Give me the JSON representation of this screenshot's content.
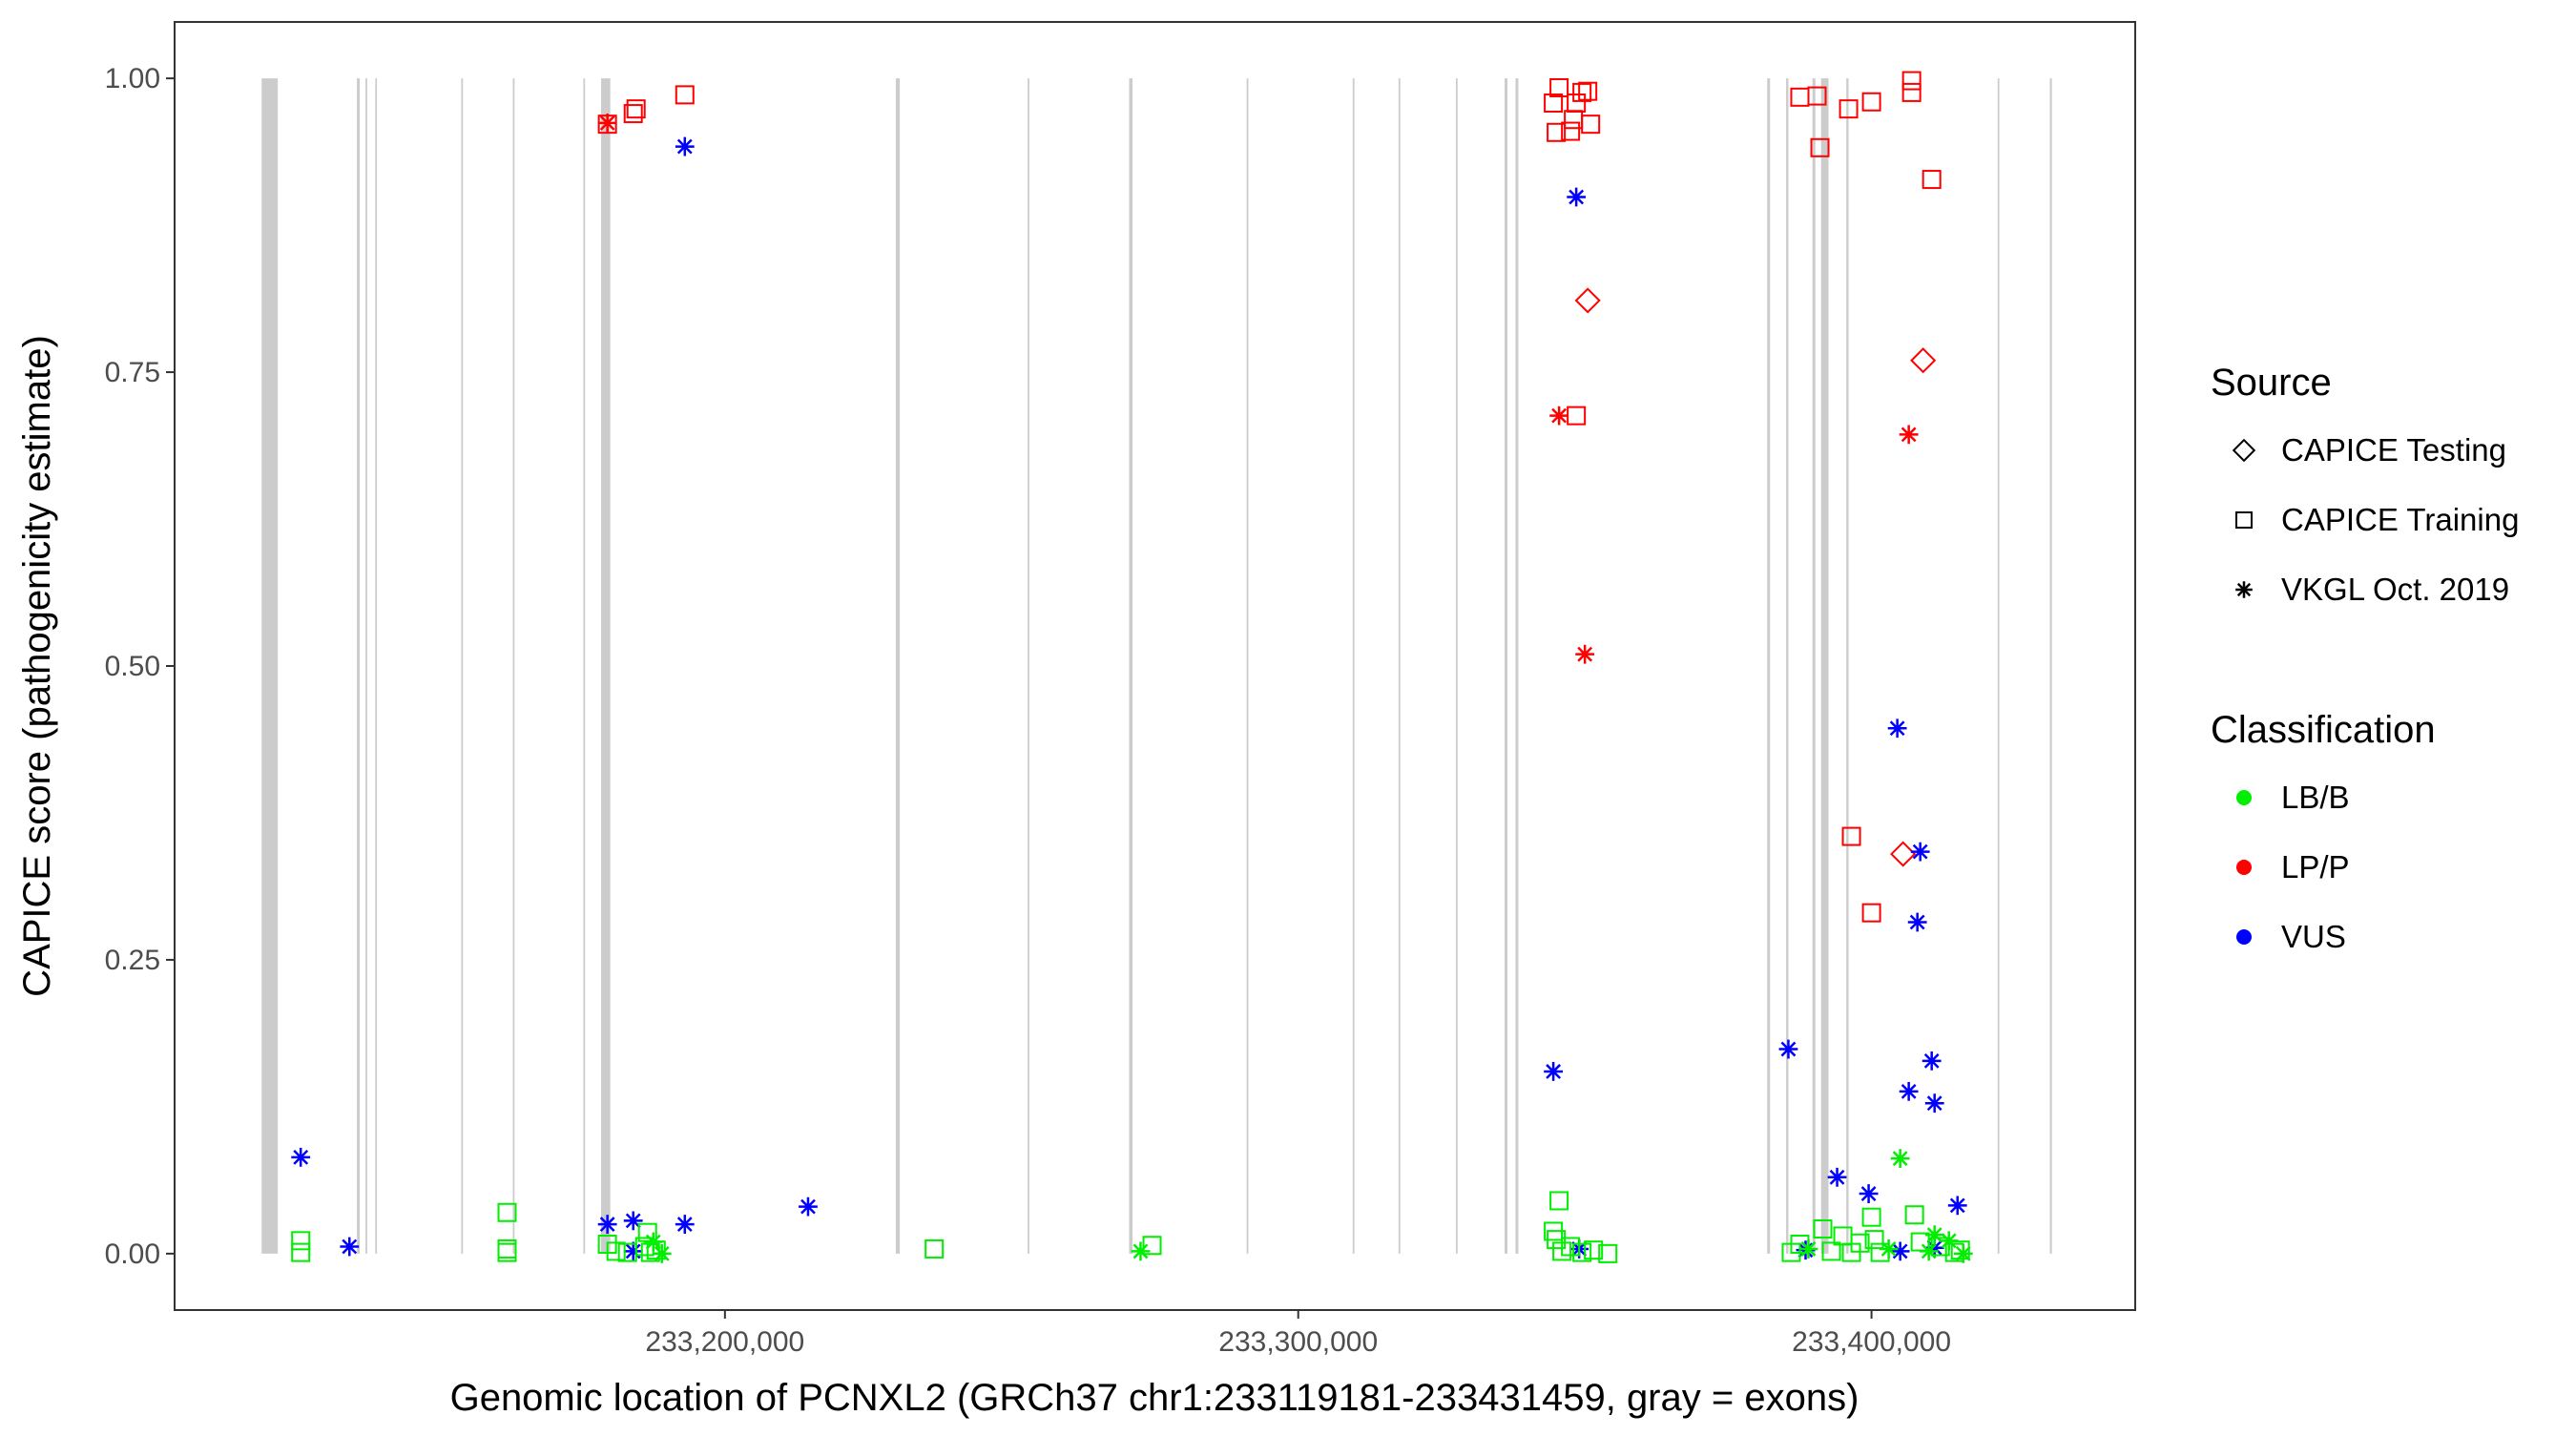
{
  "chart_data": {
    "type": "scatter",
    "title": "",
    "xlabel": "Genomic location of PCNXL2 (GRCh37 chr1:233119181-233431459, gray = exons)",
    "ylabel": "CAPICE score (pathogenicity estimate)",
    "xlim": [
      233104000,
      233446000
    ],
    "ylim": [
      -0.048,
      1.048
    ],
    "x_ticks": [
      233200000,
      233300000,
      233400000
    ],
    "x_tick_labels": [
      "233,200,000",
      "233,300,000",
      "233,400,000"
    ],
    "y_ticks": [
      0,
      0.25,
      0.5,
      0.75,
      1
    ],
    "y_tick_labels": [
      "0.00",
      "0.25",
      "0.50",
      "0.75",
      "1.00"
    ],
    "grid": false,
    "legend_position": "right",
    "exons": [
      [
        233119181,
        233122000
      ],
      [
        233135800,
        233136300
      ],
      [
        233137300,
        233137600
      ],
      [
        233139000,
        233139300
      ],
      [
        233154000,
        233154300
      ],
      [
        233163000,
        233163300
      ],
      [
        233175300,
        233175600
      ],
      [
        233178400,
        233180000
      ],
      [
        233229800,
        233230500
      ],
      [
        233252800,
        233253100
      ],
      [
        233270500,
        233271100
      ],
      [
        233291000,
        233291300
      ],
      [
        233309500,
        233309800
      ],
      [
        233317500,
        233317800
      ],
      [
        233327500,
        233327800
      ],
      [
        233336000,
        233336500
      ],
      [
        233337900,
        233338400
      ],
      [
        233381800,
        233382300
      ],
      [
        233385100,
        233385500
      ],
      [
        233389700,
        233390200
      ],
      [
        233391200,
        233392500
      ],
      [
        233395600,
        233396000
      ],
      [
        233422000,
        233422300
      ],
      [
        233431100,
        233431459
      ]
    ],
    "legend": {
      "source_title": "Source",
      "source_entries": [
        {
          "label": "CAPICE Testing",
          "shape": "diamond"
        },
        {
          "label": "CAPICE Training",
          "shape": "square"
        },
        {
          "label": "VKGL Oct. 2019",
          "shape": "asterisk"
        }
      ],
      "class_title": "Classification",
      "class_entries": [
        {
          "label": "LB/B",
          "color": "#00ee00"
        },
        {
          "label": "LP/P",
          "color": "#ff0000"
        },
        {
          "label": "VUS",
          "color": "#0000ff"
        }
      ]
    },
    "series": [
      {
        "name": "LP/P",
        "color": "#ff0000",
        "points": [
          {
            "x": 233179500,
            "y": 0.961,
            "s": "square"
          },
          {
            "x": 233179500,
            "y": 0.962,
            "s": "asterisk"
          },
          {
            "x": 233184000,
            "y": 0.97,
            "s": "square"
          },
          {
            "x": 233184500,
            "y": 0.974,
            "s": "square"
          },
          {
            "x": 233193000,
            "y": 0.986,
            "s": "square"
          },
          {
            "x": 233344500,
            "y": 0.979,
            "s": "square"
          },
          {
            "x": 233345500,
            "y": 0.992,
            "s": "square"
          },
          {
            "x": 233345000,
            "y": 0.954,
            "s": "square"
          },
          {
            "x": 233347500,
            "y": 0.955,
            "s": "square"
          },
          {
            "x": 233348000,
            "y": 0.965,
            "s": "square"
          },
          {
            "x": 233348500,
            "y": 0.979,
            "s": "square"
          },
          {
            "x": 233349500,
            "y": 0.988,
            "s": "square"
          },
          {
            "x": 233350500,
            "y": 0.989,
            "s": "square"
          },
          {
            "x": 233351000,
            "y": 0.961,
            "s": "square"
          },
          {
            "x": 233350500,
            "y": 0.811,
            "s": "diamond"
          },
          {
            "x": 233345500,
            "y": 0.713,
            "s": "asterisk"
          },
          {
            "x": 233348500,
            "y": 0.713,
            "s": "square"
          },
          {
            "x": 233350000,
            "y": 0.51,
            "s": "asterisk"
          },
          {
            "x": 233387500,
            "y": 0.984,
            "s": "square"
          },
          {
            "x": 233390500,
            "y": 0.985,
            "s": "square"
          },
          {
            "x": 233391000,
            "y": 0.941,
            "s": "square"
          },
          {
            "x": 233396000,
            "y": 0.974,
            "s": "square"
          },
          {
            "x": 233400000,
            "y": 0.98,
            "s": "square"
          },
          {
            "x": 233407000,
            "y": 0.998,
            "s": "square"
          },
          {
            "x": 233407000,
            "y": 0.988,
            "s": "square"
          },
          {
            "x": 233410500,
            "y": 0.914,
            "s": "square"
          },
          {
            "x": 233409000,
            "y": 0.76,
            "s": "diamond"
          },
          {
            "x": 233406500,
            "y": 0.697,
            "s": "asterisk"
          },
          {
            "x": 233396500,
            "y": 0.355,
            "s": "square"
          },
          {
            "x": 233405500,
            "y": 0.34,
            "s": "diamond"
          },
          {
            "x": 233400000,
            "y": 0.29,
            "s": "square"
          }
        ]
      },
      {
        "name": "VUS",
        "color": "#0000ff",
        "points": [
          {
            "x": 233193000,
            "y": 0.942,
            "s": "asterisk"
          },
          {
            "x": 233348500,
            "y": 0.899,
            "s": "asterisk"
          },
          {
            "x": 233404500,
            "y": 0.447,
            "s": "asterisk"
          },
          {
            "x": 233408500,
            "y": 0.342,
            "s": "asterisk"
          },
          {
            "x": 233408000,
            "y": 0.282,
            "s": "asterisk"
          },
          {
            "x": 233385500,
            "y": 0.174,
            "s": "asterisk"
          },
          {
            "x": 233410500,
            "y": 0.164,
            "s": "asterisk"
          },
          {
            "x": 233406500,
            "y": 0.138,
            "s": "asterisk"
          },
          {
            "x": 233411000,
            "y": 0.128,
            "s": "asterisk"
          },
          {
            "x": 233344500,
            "y": 0.155,
            "s": "asterisk"
          },
          {
            "x": 233394000,
            "y": 0.065,
            "s": "asterisk"
          },
          {
            "x": 233399500,
            "y": 0.051,
            "s": "asterisk"
          },
          {
            "x": 233415000,
            "y": 0.041,
            "s": "asterisk"
          },
          {
            "x": 233126000,
            "y": 0.082,
            "s": "asterisk"
          },
          {
            "x": 233134500,
            "y": 0.006,
            "s": "asterisk"
          },
          {
            "x": 233214500,
            "y": 0.04,
            "s": "asterisk"
          },
          {
            "x": 233179500,
            "y": 0.025,
            "s": "asterisk"
          },
          {
            "x": 233184000,
            "y": 0.028,
            "s": "asterisk"
          },
          {
            "x": 233193000,
            "y": 0.025,
            "s": "asterisk"
          },
          {
            "x": 233184000,
            "y": 0.002,
            "s": "asterisk"
          },
          {
            "x": 233349000,
            "y": 0.004,
            "s": "asterisk"
          },
          {
            "x": 233388500,
            "y": 0.003,
            "s": "asterisk"
          },
          {
            "x": 233405000,
            "y": 0.002,
            "s": "asterisk"
          },
          {
            "x": 233411000,
            "y": 0.005,
            "s": "asterisk"
          }
        ]
      },
      {
        "name": "LB/B",
        "color": "#00ee00",
        "points": [
          {
            "x": 233405000,
            "y": 0.081,
            "s": "asterisk"
          },
          {
            "x": 233126000,
            "y": 0.011,
            "s": "square"
          },
          {
            "x": 233126000,
            "y": 0.001,
            "s": "square"
          },
          {
            "x": 233162000,
            "y": 0.035,
            "s": "square"
          },
          {
            "x": 233162000,
            "y": 0.004,
            "s": "square"
          },
          {
            "x": 233162000,
            "y": 0.001,
            "s": "square"
          },
          {
            "x": 233179500,
            "y": 0.008,
            "s": "square"
          },
          {
            "x": 233181000,
            "y": 0.002,
            "s": "square"
          },
          {
            "x": 233183000,
            "y": 0.001,
            "s": "square"
          },
          {
            "x": 233186000,
            "y": 0.006,
            "s": "square"
          },
          {
            "x": 233186500,
            "y": 0.018,
            "s": "square"
          },
          {
            "x": 233187000,
            "y": 0.001,
            "s": "square"
          },
          {
            "x": 233187500,
            "y": 0.01,
            "s": "asterisk"
          },
          {
            "x": 233188000,
            "y": 0.003,
            "s": "square"
          },
          {
            "x": 233189000,
            "y": 0.0,
            "s": "asterisk"
          },
          {
            "x": 233236500,
            "y": 0.004,
            "s": "square"
          },
          {
            "x": 233272500,
            "y": 0.002,
            "s": "asterisk"
          },
          {
            "x": 233274500,
            "y": 0.007,
            "s": "square"
          },
          {
            "x": 233344500,
            "y": 0.019,
            "s": "square"
          },
          {
            "x": 233345000,
            "y": 0.012,
            "s": "square"
          },
          {
            "x": 233345500,
            "y": 0.045,
            "s": "square"
          },
          {
            "x": 233346000,
            "y": 0.002,
            "s": "square"
          },
          {
            "x": 233347500,
            "y": 0.006,
            "s": "square"
          },
          {
            "x": 233349500,
            "y": 0.001,
            "s": "square"
          },
          {
            "x": 233351500,
            "y": 0.003,
            "s": "square"
          },
          {
            "x": 233354000,
            "y": 0.0,
            "s": "square"
          },
          {
            "x": 233386000,
            "y": 0.001,
            "s": "square"
          },
          {
            "x": 233387500,
            "y": 0.008,
            "s": "square"
          },
          {
            "x": 233389000,
            "y": 0.004,
            "s": "asterisk"
          },
          {
            "x": 233391500,
            "y": 0.021,
            "s": "square"
          },
          {
            "x": 233393000,
            "y": 0.002,
            "s": "square"
          },
          {
            "x": 233395000,
            "y": 0.015,
            "s": "square"
          },
          {
            "x": 233396500,
            "y": 0.001,
            "s": "square"
          },
          {
            "x": 233398000,
            "y": 0.009,
            "s": "square"
          },
          {
            "x": 233400000,
            "y": 0.031,
            "s": "square"
          },
          {
            "x": 233400500,
            "y": 0.012,
            "s": "square"
          },
          {
            "x": 233401500,
            "y": 0.001,
            "s": "square"
          },
          {
            "x": 233403000,
            "y": 0.004,
            "s": "asterisk"
          },
          {
            "x": 233407500,
            "y": 0.033,
            "s": "square"
          },
          {
            "x": 233408500,
            "y": 0.01,
            "s": "square"
          },
          {
            "x": 233410000,
            "y": 0.002,
            "s": "asterisk"
          },
          {
            "x": 233411000,
            "y": 0.016,
            "s": "asterisk"
          },
          {
            "x": 233412000,
            "y": 0.006,
            "s": "square"
          },
          {
            "x": 233413500,
            "y": 0.011,
            "s": "asterisk"
          },
          {
            "x": 233414500,
            "y": 0.001,
            "s": "square"
          },
          {
            "x": 233415500,
            "y": 0.003,
            "s": "square"
          },
          {
            "x": 233416000,
            "y": 0.0,
            "s": "asterisk"
          }
        ]
      }
    ]
  }
}
